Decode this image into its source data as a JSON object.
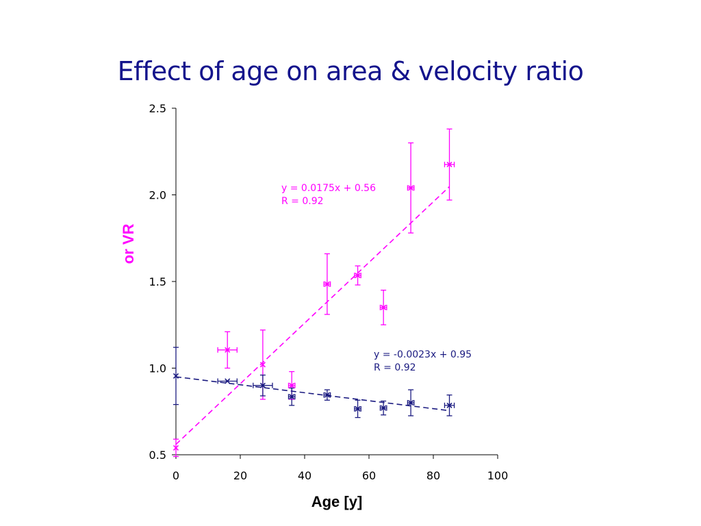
{
  "title": "Effect of age on area & velocity ratio",
  "chart_data": {
    "type": "scatter",
    "xlabel": "Age [y]",
    "ylabel": "or VR",
    "xlim": [
      0,
      100
    ],
    "ylim": [
      0.5,
      2.5
    ],
    "xticks": [
      "0",
      "20",
      "40",
      "60",
      "80",
      "100"
    ],
    "yticks": [
      "0.5",
      "1.0",
      "1.5",
      "2.0",
      "2.5"
    ],
    "grid": false,
    "series": [
      {
        "color": "#ff00ff",
        "points": [
          {
            "x": 0,
            "y": 0.54,
            "yerr": 0.05
          },
          {
            "x": 16,
            "y": 1.105,
            "xerr": 3,
            "yerr": 0.105
          },
          {
            "x": 27,
            "y": 1.02,
            "yerr": 0.2
          },
          {
            "x": 36,
            "y": 0.9,
            "xerr": 1,
            "yerr": 0.08
          },
          {
            "x": 47,
            "y": 1.485,
            "xerr": 1,
            "yerr": 0.175
          },
          {
            "x": 56.5,
            "y": 1.535,
            "xerr": 1,
            "yerr": 0.055
          },
          {
            "x": 64.5,
            "y": 1.35,
            "xerr": 1,
            "yerr": 0.1
          },
          {
            "x": 73,
            "y": 2.04,
            "xerr": 1,
            "yerr": 0.26
          },
          {
            "x": 85,
            "y": 2.175,
            "xerr": 1.5,
            "yerr": 0.205
          }
        ],
        "trendline": {
          "slope": 0.0175,
          "intercept": 0.56,
          "x": [
            0,
            85
          ]
        },
        "equation": "y = 0.0175x + 0.56",
        "r_label": "R = 0.92"
      },
      {
        "color": "#1a1a80",
        "points": [
          {
            "x": 0,
            "y": 0.955,
            "yerr": 0.165
          },
          {
            "x": 16,
            "y": 0.925,
            "xerr": 3
          },
          {
            "x": 27,
            "y": 0.9,
            "xerr": 3,
            "yerr": 0.06
          },
          {
            "x": 36,
            "y": 0.835,
            "xerr": 1,
            "yerr": 0.05
          },
          {
            "x": 47,
            "y": 0.845,
            "xerr": 1,
            "yerr": 0.03
          },
          {
            "x": 56.5,
            "y": 0.765,
            "xerr": 1,
            "yerr": 0.05
          },
          {
            "x": 64.5,
            "y": 0.77,
            "xerr": 1,
            "yerr": 0.04
          },
          {
            "x": 73,
            "y": 0.8,
            "xerr": 1,
            "yerr": 0.075
          },
          {
            "x": 85,
            "y": 0.785,
            "xerr": 1.5,
            "yerr": 0.06
          }
        ],
        "trendline": {
          "slope": -0.0023,
          "intercept": 0.95,
          "x": [
            0,
            85
          ]
        },
        "equation": "y = -0.0023x + 0.95",
        "r_label": "R = 0.92"
      }
    ]
  }
}
